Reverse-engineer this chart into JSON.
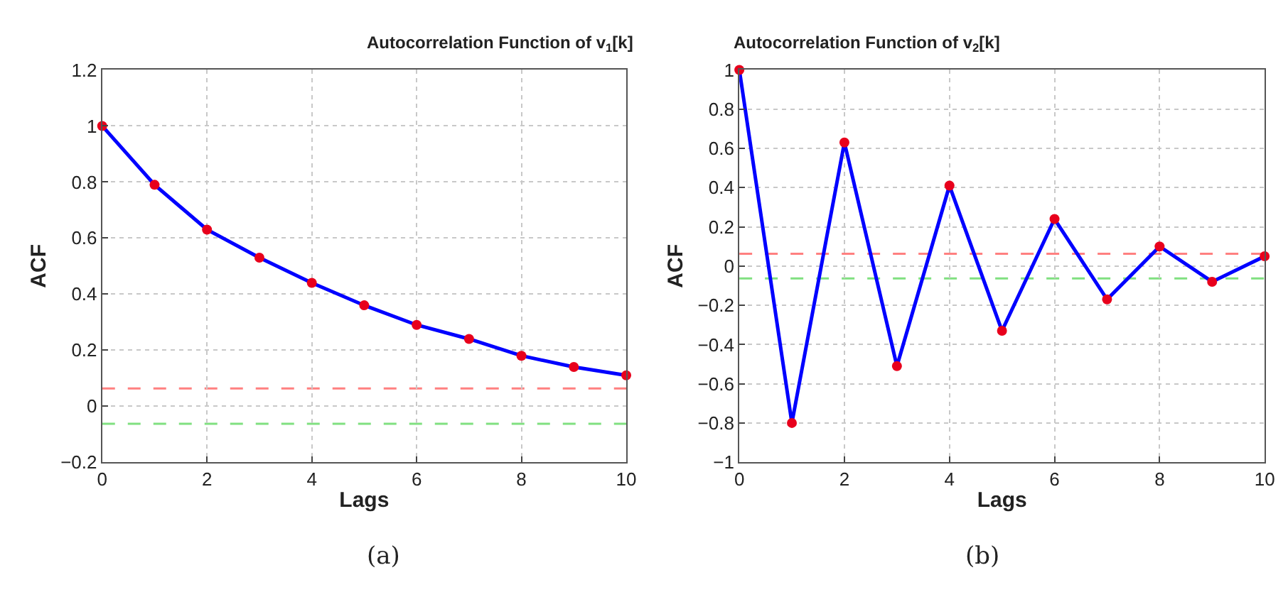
{
  "chart_data": [
    {
      "type": "line",
      "title": "Autocorrelation Function of v$_{1}$[k]",
      "xlabel": "Lags",
      "ylabel": "ACF",
      "x": [
        0,
        1,
        2,
        3,
        4,
        5,
        6,
        7,
        8,
        9,
        10
      ],
      "series": [
        {
          "color": "#0000ff",
          "colors": [
            "#e8001c",
            "#e8001c",
            "#e8001c",
            "#e8001c",
            "#e8001c",
            "#e8001c",
            "#e8001c",
            "#e8001c",
            "#e8001c",
            "#e8001c",
            "#e8001c"
          ],
          "values": [
            1,
            0.79,
            0.63,
            0.53,
            0.44,
            0.36,
            0.29,
            0.24,
            0.18,
            0.14,
            0.11
          ]
        }
      ],
      "xlim": [
        0,
        10
      ],
      "xticks": [
        0,
        2,
        4,
        6,
        8,
        10
      ],
      "ylim": [
        -0.2,
        1.2
      ],
      "yticks": [
        -0.2,
        0,
        0.2,
        0.4,
        0.6,
        0.8,
        1,
        1.2
      ],
      "ref_lines": [
        {
          "axis": "y",
          "value": 0.063,
          "color": "#ff8080",
          "line_style": "dashed"
        },
        {
          "axis": "y",
          "value": -0.063,
          "color": "#80e080",
          "line_style": "dashed"
        }
      ],
      "grid": true,
      "marker": "circle",
      "line_style": "solid",
      "annotations": [
        "(a)"
      ]
    },
    {
      "type": "line",
      "title": "Autocorrelation Function of v$_{2}$[k]",
      "xlabel": "Lags",
      "ylabel": "ACF",
      "x": [
        0,
        1,
        2,
        3,
        4,
        5,
        6,
        7,
        8,
        9,
        10
      ],
      "series": [
        {
          "color": "#0000ff",
          "colors": [
            "#e8001c",
            "#e8001c",
            "#e8001c",
            "#e8001c",
            "#e8001c",
            "#e8001c",
            "#e8001c",
            "#e8001c",
            "#e8001c",
            "#e8001c",
            "#e8001c"
          ],
          "values": [
            1,
            -0.8,
            0.63,
            -0.51,
            0.41,
            -0.33,
            0.24,
            -0.17,
            0.1,
            -0.08,
            0.05
          ]
        }
      ],
      "xlim": [
        0,
        10
      ],
      "xticks": [
        0,
        2,
        4,
        6,
        8,
        10
      ],
      "ylim": [
        -1,
        1
      ],
      "yticks": [
        -1,
        -0.8,
        -0.6,
        -0.4,
        -0.2,
        0,
        0.2,
        0.4,
        0.6,
        0.8,
        1
      ],
      "ref_lines": [
        {
          "axis": "y",
          "value": 0.063,
          "color": "#ff8080",
          "line_style": "dashed"
        },
        {
          "axis": "y",
          "value": -0.063,
          "color": "#80e080",
          "line_style": "dashed"
        }
      ],
      "grid": true,
      "marker": "circle",
      "line_style": "solid",
      "annotations": [
        "(b)"
      ]
    }
  ]
}
